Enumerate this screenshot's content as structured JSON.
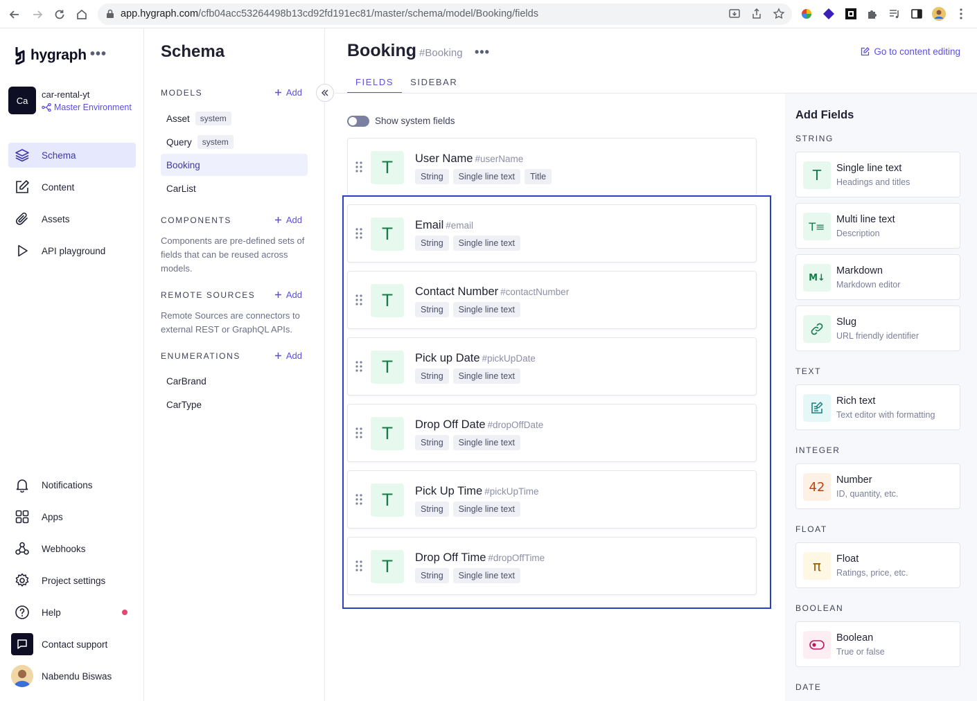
{
  "browser": {
    "url_host": "app.hygraph.com",
    "url_path": "/cfb04acc53264498b13cd92fd191ec81/master/schema/model/Booking/fields"
  },
  "leftnav": {
    "logo": "hygraph",
    "project_initials": "Ca",
    "project_name": "car-rental-yt",
    "environment": "Master Environment",
    "items": [
      {
        "label": "Schema",
        "icon": "layers-icon"
      },
      {
        "label": "Content",
        "icon": "edit-icon"
      },
      {
        "label": "Assets",
        "icon": "paperclip-icon"
      },
      {
        "label": "API playground",
        "icon": "play-icon"
      }
    ],
    "bottom_items": [
      {
        "label": "Notifications",
        "icon": "bell-icon"
      },
      {
        "label": "Apps",
        "icon": "apps-icon"
      },
      {
        "label": "Webhooks",
        "icon": "webhook-icon"
      },
      {
        "label": "Project settings",
        "icon": "gear-icon"
      },
      {
        "label": "Help",
        "icon": "help-icon"
      },
      {
        "label": "Contact support",
        "icon": "chat-icon"
      },
      {
        "label": "Nabendu Biswas",
        "icon": "avatar"
      }
    ]
  },
  "schema": {
    "title": "Schema",
    "add_label": "Add",
    "models_heading": "MODELS",
    "models": [
      {
        "name": "Asset",
        "badge": "system"
      },
      {
        "name": "Query",
        "badge": "system"
      },
      {
        "name": "Booking",
        "badge": ""
      },
      {
        "name": "CarList",
        "badge": ""
      }
    ],
    "components_heading": "COMPONENTS",
    "components_desc": "Components are pre-defined sets of fields that can be reused across models.",
    "remote_heading": "REMOTE SOURCES",
    "remote_desc": "Remote Sources are connectors to external REST or GraphQL APIs.",
    "enum_heading": "ENUMERATIONS",
    "enums": [
      "CarBrand",
      "CarType"
    ]
  },
  "main": {
    "model_name": "Booking",
    "model_api": "#Booking",
    "goto_label": "Go to content editing",
    "tabs": [
      "FIELDS",
      "SIDEBAR"
    ],
    "toggle_label": "Show system fields",
    "fields": [
      {
        "name": "User Name",
        "api": "#userName",
        "tags": [
          "String",
          "Single line text",
          "Title"
        ]
      },
      {
        "name": "Email",
        "api": "#email",
        "tags": [
          "String",
          "Single line text"
        ]
      },
      {
        "name": "Contact Number",
        "api": "#contactNumber",
        "tags": [
          "String",
          "Single line text"
        ]
      },
      {
        "name": "Pick up Date",
        "api": "#pickUpDate",
        "tags": [
          "String",
          "Single line text"
        ]
      },
      {
        "name": "Drop Off Date",
        "api": "#dropOffDate",
        "tags": [
          "String",
          "Single line text"
        ]
      },
      {
        "name": "Pick Up Time",
        "api": "#pickUpTime",
        "tags": [
          "String",
          "Single line text"
        ]
      },
      {
        "name": "Drop Off Time",
        "api": "#dropOffTime",
        "tags": [
          "String",
          "Single line text"
        ]
      }
    ]
  },
  "add_fields": {
    "title": "Add Fields",
    "categories": {
      "string": "STRING",
      "text": "TEXT",
      "integer": "INTEGER",
      "float": "FLOAT",
      "boolean": "BOOLEAN",
      "date": "DATE"
    },
    "types": {
      "single": {
        "name": "Single line text",
        "desc": "Headings and titles",
        "glyph": "T"
      },
      "multi": {
        "name": "Multi line text",
        "desc": "Description",
        "glyph": "T≡"
      },
      "markdown": {
        "name": "Markdown",
        "desc": "Markdown editor",
        "glyph": "M↓"
      },
      "slug": {
        "name": "Slug",
        "desc": "URL friendly identifier",
        "glyph": ""
      },
      "richtext": {
        "name": "Rich text",
        "desc": "Text editor with formatting",
        "glyph": ""
      },
      "number": {
        "name": "Number",
        "desc": "ID, quantity, etc.",
        "glyph": "42"
      },
      "float": {
        "name": "Float",
        "desc": "Ratings, price, etc.",
        "glyph": "π"
      },
      "boolean": {
        "name": "Boolean",
        "desc": "True or false",
        "glyph": ""
      }
    }
  },
  "colors": {
    "accent": "#5b4fe0",
    "highlight": "#2a3fc6",
    "field_icon_bg": "#e7f8ee",
    "field_icon_fg": "#18794a"
  }
}
